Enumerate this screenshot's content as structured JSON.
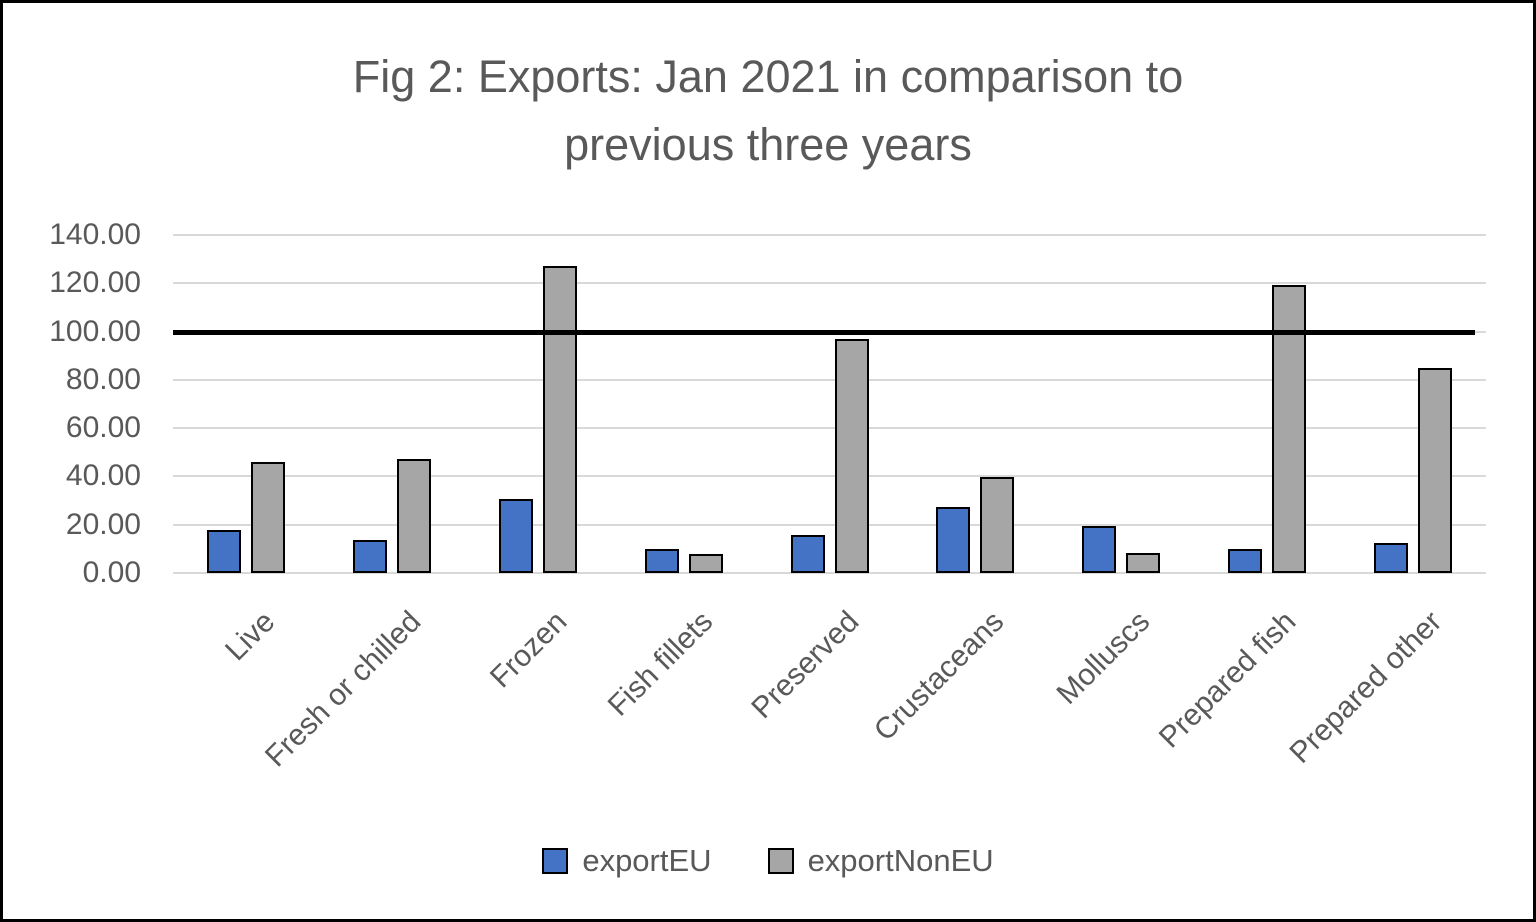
{
  "chart_data": {
    "type": "bar",
    "title": "Fig 2: Exports: Jan 2021 in comparison to previous three years",
    "categories": [
      "Live",
      "Fresh or chilled",
      "Frozen",
      "Fish fillets",
      "Preserved",
      "Crustaceans",
      "Molluscs",
      "Prepared fish",
      "Prepared other"
    ],
    "series": [
      {
        "name": "exportEU",
        "color": "#4472C4",
        "values": [
          17,
          13,
          30,
          9,
          15,
          26.5,
          18.5,
          9,
          11.5
        ]
      },
      {
        "name": "exportNonEU",
        "color": "#A6A6A6",
        "values": [
          45,
          46.5,
          126.5,
          7,
          96,
          39,
          7.5,
          118.5,
          84
        ]
      }
    ],
    "xlabel": "",
    "ylabel": "",
    "ylim": [
      0,
      140
    ],
    "yticks": [
      0,
      20,
      40,
      60,
      80,
      100,
      120,
      140
    ],
    "ytick_labels": [
      "0.00",
      "20.00",
      "40.00",
      "60.00",
      "80.00",
      "100.00",
      "120.00",
      "140.00"
    ],
    "reference_line": {
      "value": 100,
      "color": "#000000"
    },
    "grid": true,
    "gridline_color": "#D9D9D9",
    "bar_outline_color": "#000000",
    "text_color": "#595959",
    "legend_position": "bottom",
    "legend_entries": [
      "exportEU",
      "exportNonEU"
    ]
  }
}
